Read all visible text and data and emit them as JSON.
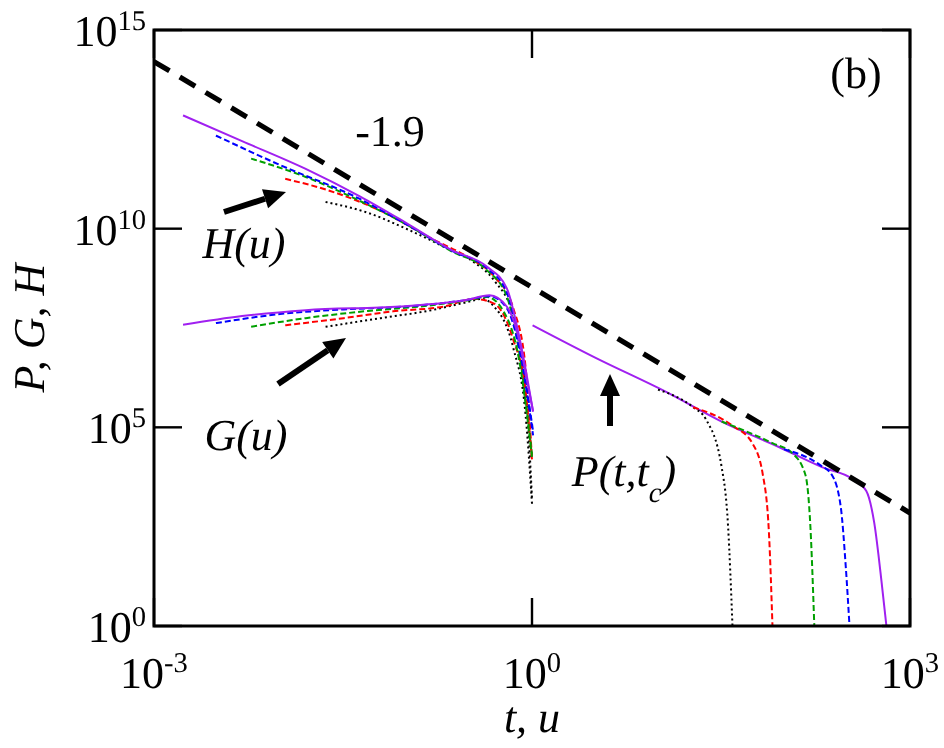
{
  "chart_data": {
    "type": "line",
    "xlabel": "t, u",
    "ylabel": "P, G, H",
    "log": "xy",
    "grid": false,
    "xlim": [
      0.001,
      1000
    ],
    "ylim": [
      1,
      1000000000000000.0
    ],
    "xticks": [
      {
        "value": 0.001,
        "label": "10$^{-3}$"
      },
      {
        "value": 1,
        "label": "10$^{0}$"
      },
      {
        "value": 1000,
        "label": "10$^{3}$"
      }
    ],
    "yticks": [
      {
        "value": 1,
        "label": "10$^{0}$"
      },
      {
        "value": 100000,
        "label": "10$^{5}$"
      },
      {
        "value": 10000000000,
        "label": "10$^{10}$"
      },
      {
        "value": 1000000000000000.0,
        "label": "10$^{15}$"
      }
    ],
    "series": [
      {
        "color": "#000000",
        "line_style": "dotted",
        "x": [
          0.023,
          0.05,
          0.1,
          0.2,
          0.35,
          0.5,
          0.71,
          0.89,
          1.0
        ],
        "values": [
          47000000000.0,
          25000000000.0,
          10000000000.0,
          3500000000.0,
          1400000000.0,
          500000000.0,
          63000000.0,
          1000000.0,
          1600.0
        ]
      },
      {
        "color": "#ff0000",
        "line_style": "dashed",
        "x": [
          0.011,
          0.025,
          0.063,
          0.16,
          0.32,
          0.5,
          0.71,
          0.89,
          1.0
        ],
        "values": [
          180000000000.0,
          89000000000.0,
          28000000000.0,
          5600000000.0,
          1800000000.0,
          630000000.0,
          100000000.0,
          3200000.0,
          16000.0
        ]
      },
      {
        "color": "#00a000",
        "line_style": "dashed",
        "x": [
          0.0059,
          0.016,
          0.043,
          0.1,
          0.23,
          0.44,
          0.63,
          0.79,
          1.0
        ],
        "values": [
          580000000000.0,
          200000000000.0,
          50000000000.0,
          13000000000.0,
          2700000000.0,
          890000000.0,
          200000000.0,
          7900000.0,
          20000.0
        ]
      },
      {
        "color": "#0000ff",
        "line_style": "dashed",
        "x": [
          0.0031,
          0.01,
          0.043,
          0.1,
          0.23,
          0.44,
          0.63,
          0.79,
          1.02
        ],
        "values": [
          2200000000000.0,
          400000000000.0,
          56000000000.0,
          13000000000.0,
          2800000000.0,
          1000000000.0,
          250000000.0,
          13000000.0,
          79000.0
        ]
      },
      {
        "color": "#a020f0",
        "line_style": "solid",
        "x": [
          0.0017,
          0.005,
          0.016,
          0.043,
          0.1,
          0.23,
          0.44,
          0.63,
          0.79,
          1.02
        ],
        "values": [
          7100000000000.0,
          1600000000000.0,
          320000000000.0,
          65000000000.0,
          14000000000.0,
          2900000000.0,
          1100000000.0,
          320000000.0,
          20000000.0,
          250000.0
        ]
      },
      {
        "color": "#000000",
        "line_style": "dotted",
        "x": [
          0.023,
          0.063,
          0.16,
          0.3,
          0.4,
          0.5,
          0.71,
          0.89,
          1.0
        ],
        "values": [
          34000000.0,
          56000000.0,
          89000000.0,
          140000000.0,
          170000000.0,
          110000000.0,
          10000000.0,
          200000.0,
          1200.0
        ]
      },
      {
        "color": "#ff0000",
        "line_style": "dashed",
        "x": [
          0.011,
          0.032,
          0.079,
          0.2,
          0.35,
          0.5,
          0.71,
          0.89,
          1.0
        ],
        "values": [
          37000000.0,
          56000000.0,
          83000000.0,
          110000000.0,
          170000000.0,
          130000000.0,
          16000000.0,
          790000.0,
          15000.0
        ]
      },
      {
        "color": "#00a000",
        "line_style": "dashed",
        "x": [
          0.0059,
          0.016,
          0.05,
          0.13,
          0.32,
          0.44,
          0.6,
          0.79,
          1.0
        ],
        "values": [
          34000000.0,
          56000000.0,
          85000000.0,
          110000000.0,
          160000000.0,
          190000000.0,
          79000000.0,
          5000000.0,
          18000.0
        ]
      },
      {
        "color": "#0000ff",
        "line_style": "dashed",
        "x": [
          0.0031,
          0.01,
          0.032,
          0.1,
          0.3,
          0.46,
          0.63,
          0.79,
          1.02
        ],
        "values": [
          42000000.0,
          71000000.0,
          93000000.0,
          110000000.0,
          160000000.0,
          200000000.0,
          100000000.0,
          10000000.0,
          63000.0
        ]
      },
      {
        "color": "#a020f0",
        "line_style": "solid",
        "x": [
          0.0017,
          0.005,
          0.016,
          0.089,
          0.3,
          0.46,
          0.63,
          0.79,
          0.89,
          1.02
        ],
        "values": [
          38000000.0,
          63000000.0,
          89000000.0,
          110000000.0,
          160000000.0,
          210000000.0,
          110000000.0,
          16000000.0,
          2300000.0,
          250000.0
        ]
      },
      {
        "color": "#a020f0",
        "line_style": "solid",
        "x": [
          1.01,
          3.2,
          11.5,
          32,
          91,
          200,
          350,
          450,
          520,
          600,
          650
        ],
        "values": [
          37000000.0,
          5600000.0,
          790000.0,
          140000.0,
          32000.0,
          10000.0,
          5000.0,
          2500.0,
          400,
          10,
          1
        ]
      },
      {
        "color": "#000000",
        "line_style": "dotted",
        "x": [
          10,
          19,
          24,
          32,
          36,
          39
        ],
        "values": [
          890000.0,
          320000.0,
          160000.0,
          10000.0,
          316,
          1
        ]
      },
      {
        "color": "#ff0000",
        "line_style": "dashed",
        "x": [
          19,
          39,
          56,
          68,
          76,
          81
        ],
        "values": [
          320000.0,
          110000.0,
          40000.0,
          6300.0,
          210,
          1
        ]
      },
      {
        "color": "#00a000",
        "line_style": "dashed",
        "x": [
          32,
          81,
          117,
          148,
          162,
          174
        ],
        "values": [
          140000.0,
          40000.0,
          22000.0,
          6300.0,
          316,
          1
        ]
      },
      {
        "color": "#0000ff",
        "line_style": "dashed",
        "x": [
          100,
          195,
          240,
          282,
          309,
          331
        ],
        "values": [
          28000.0,
          11000.0,
          6300.0,
          1000.0,
          32,
          1
        ]
      },
      {
        "color": "#000000",
        "line_style": "dashed",
        "x": [
          0.001,
          1000
        ],
        "values": [
          160000000000000.0,
          700
        ]
      }
    ],
    "annotations": [
      "-1.9",
      "H(u)",
      "G(u)",
      "P(t,t$_{c}$)",
      "(b)"
    ]
  }
}
